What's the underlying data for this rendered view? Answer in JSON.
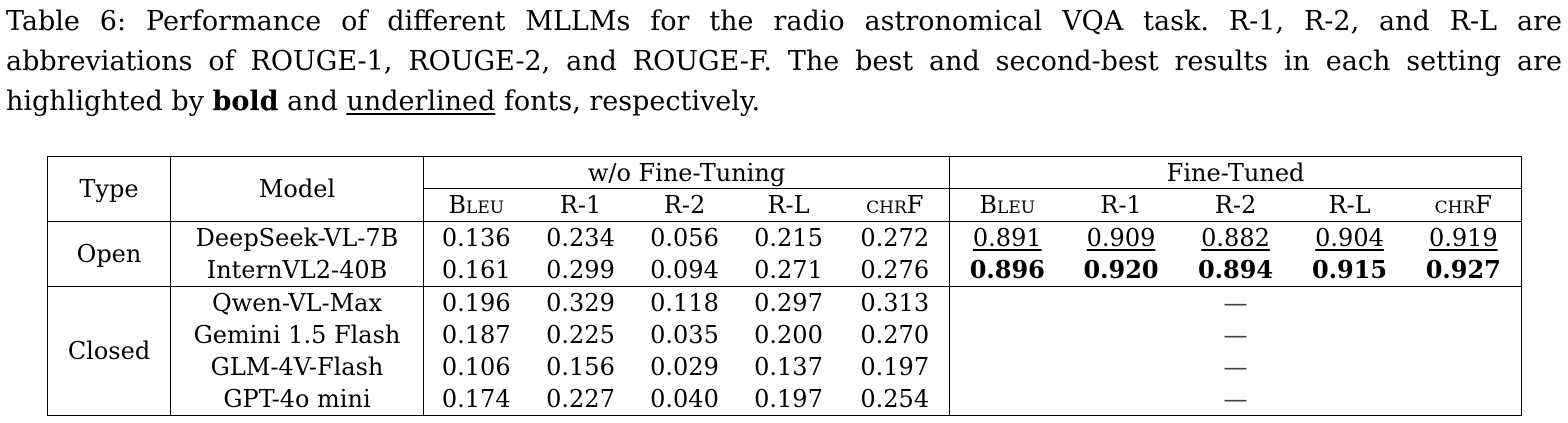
{
  "caption": {
    "part1": "Table 6:  Performance of different MLLMs for the radio astronomical VQA task.  R-1, R-2, and R-L are abbreviations of ROUGE-1, ROUGE-2, and ROUGE-F. The best and second-best results in each setting are highlighted by ",
    "bold_word": "bold",
    "part2": " and ",
    "underline_word": "underlined",
    "part3": " fonts, respectively."
  },
  "table": {
    "headers": {
      "type": "Type",
      "model": "Model",
      "group_wo": "w/o Fine-Tuning",
      "group_ft": "Fine-Tuned",
      "metrics": [
        "Bleu",
        "R-1",
        "R-2",
        "R-L",
        "chrF"
      ]
    },
    "groups": [
      {
        "type": "Open",
        "rows": [
          {
            "model": "DeepSeek-VL-7B",
            "wo": [
              "0.136",
              "0.234",
              "0.056",
              "0.215",
              "0.272"
            ],
            "ft": [
              "0.891",
              "0.909",
              "0.882",
              "0.904",
              "0.919"
            ]
          },
          {
            "model": "InternVL2-40B",
            "wo": [
              "0.161",
              "0.299",
              "0.094",
              "0.271",
              "0.276"
            ],
            "ft": [
              "0.896",
              "0.920",
              "0.894",
              "0.915",
              "0.927"
            ]
          }
        ]
      },
      {
        "type": "Closed",
        "rows": [
          {
            "model": "Qwen-VL-Max",
            "wo": [
              "0.196",
              "0.329",
              "0.118",
              "0.297",
              "0.313"
            ],
            "ft": "—"
          },
          {
            "model": "Gemini 1.5 Flash",
            "wo": [
              "0.187",
              "0.225",
              "0.035",
              "0.200",
              "0.270"
            ],
            "ft": "—"
          },
          {
            "model": "GLM-4V-Flash",
            "wo": [
              "0.106",
              "0.156",
              "0.029",
              "0.137",
              "0.197"
            ],
            "ft": "—"
          },
          {
            "model": "GPT-4o mini",
            "wo": [
              "0.174",
              "0.227",
              "0.040",
              "0.197",
              "0.254"
            ],
            "ft": "—"
          }
        ]
      }
    ]
  }
}
